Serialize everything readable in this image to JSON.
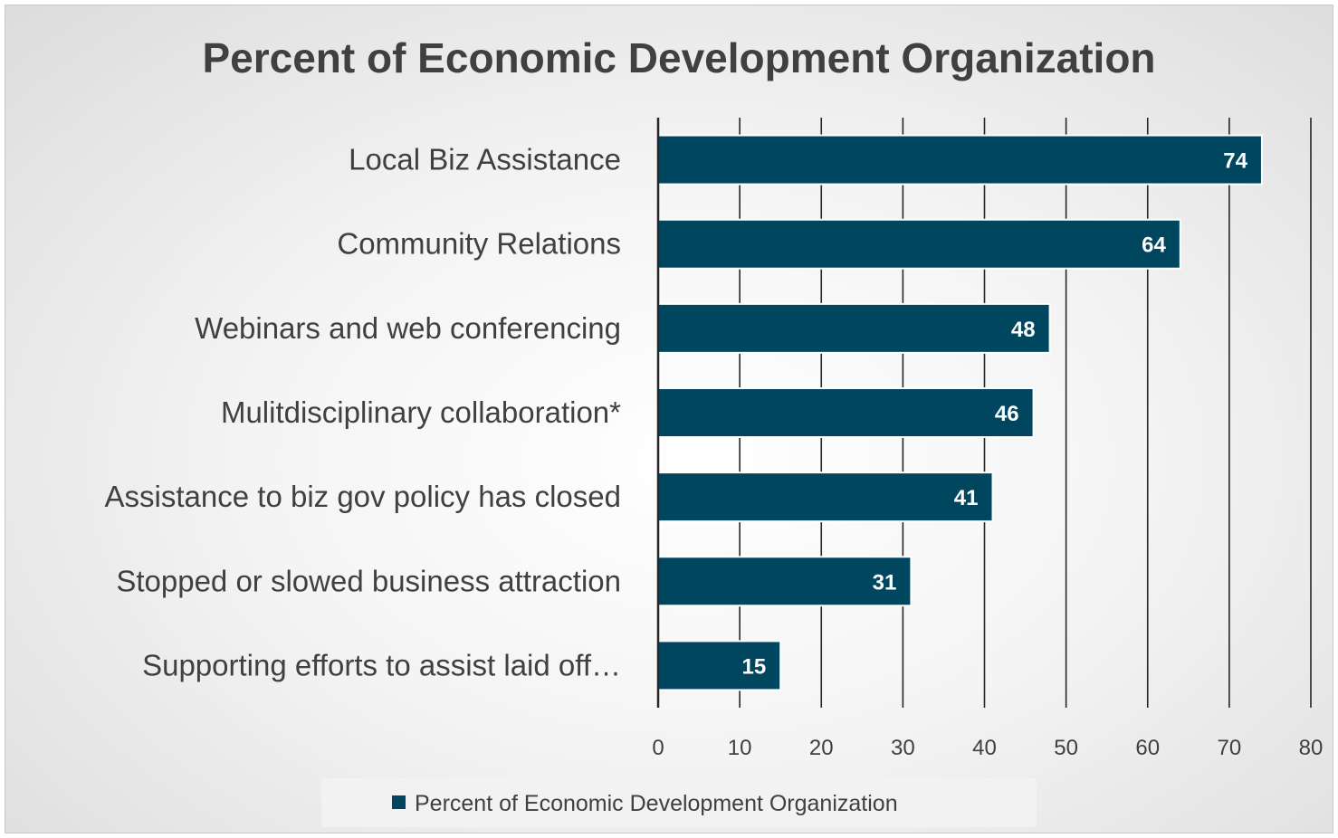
{
  "chart_data": {
    "type": "bar",
    "orientation": "horizontal",
    "title": "Percent of Economic Development Organization",
    "categories": [
      "Local Biz Assistance",
      "Community Relations",
      "Webinars and web conferencing",
      "Mulitdisciplinary collaboration*",
      "Assistance to biz gov policy has closed",
      "Stopped or slowed business attraction",
      "Supporting efforts to assist laid off…"
    ],
    "series": [
      {
        "name": "Percent of Economic Development Organization",
        "values": [
          74,
          64,
          48,
          46,
          41,
          31,
          15
        ],
        "color": "#00465f"
      }
    ],
    "xlim": [
      0,
      80
    ],
    "xticks": [
      0,
      10,
      20,
      30,
      40,
      50,
      60,
      70,
      80
    ],
    "grid": true,
    "data_labels": true,
    "legend_position": "bottom"
  }
}
